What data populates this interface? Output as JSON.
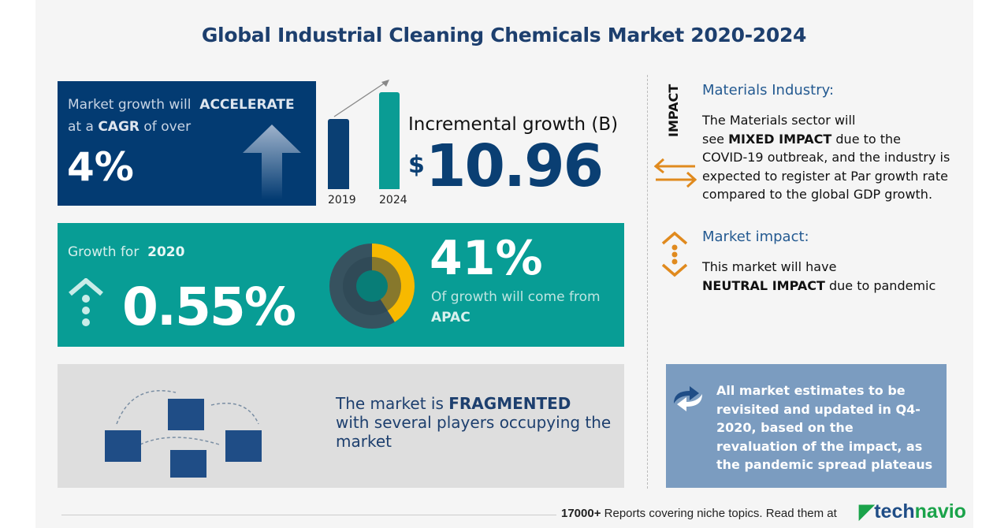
{
  "title": "Global Industrial Cleaning Chemicals Market 2020-2024",
  "cagr": {
    "line1_pre": "Market growth will",
    "line1_bold": "ACCELERATE",
    "line2_pre": "at a",
    "line2_bold": "CAGR",
    "line2_post": "of over",
    "value": "4%"
  },
  "incremental": {
    "label": "Incremental growth (B)",
    "currency": "$",
    "value": "10.96",
    "years": [
      "2019",
      "2024"
    ]
  },
  "growth2020": {
    "label": "Growth for",
    "year": "2020",
    "value": "0.55%"
  },
  "region": {
    "share": "41%",
    "text": "Of growth will come from",
    "region": "APAC",
    "share_fraction": 0.41
  },
  "fragmented": {
    "pre": "The market is",
    "bold": "FRAGMENTED",
    "rest": "with several players occupying the market"
  },
  "impact": {
    "vertical_label": "IMPACT",
    "industry_heading": "Materials Industry:",
    "industry_text_1": "The Materials sector will",
    "industry_text_2_pre": "see",
    "industry_text_2_bold": "MIXED IMPACT",
    "industry_text_2_post": "due to the",
    "industry_text_3": "COVID-19 outbreak, and the industry is expected to register at Par growth rate compared to the global GDP growth.",
    "market_heading": "Market impact:",
    "market_text_1": "This market will have",
    "market_bold": "NEUTRAL IMPACT",
    "market_post": "due to pandemic"
  },
  "notice": "All market estimates to be revisited and updated in Q4-2020, based on the revaluation of the impact, as the pandemic spread plateaus",
  "footer": {
    "count": "17000+",
    "text": "Reports covering niche topics. Read them at",
    "brand_a": "tech",
    "brand_b": "navio"
  },
  "colors": {
    "navy": "#033b72",
    "teal": "#089d95",
    "orange": "#e08a1e",
    "yellow": "#f7b900"
  }
}
